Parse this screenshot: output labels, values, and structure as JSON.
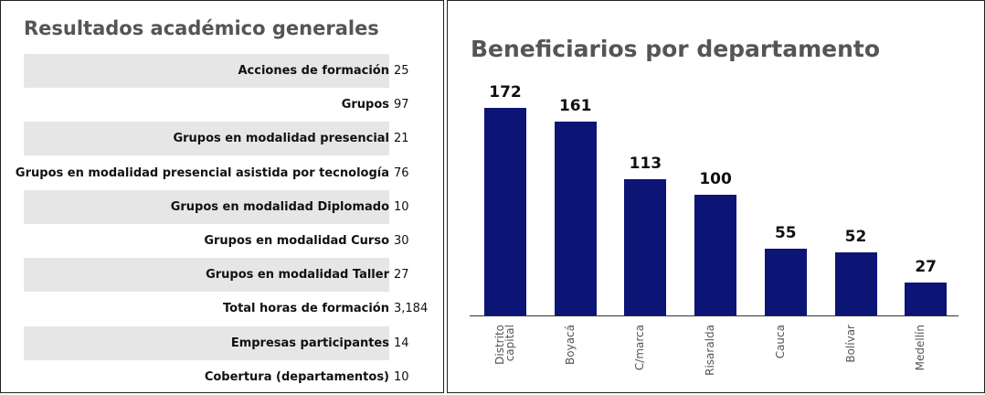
{
  "table": {
    "title": "Resultados académico generales",
    "rows": [
      [
        "Acciones de formación",
        "25"
      ],
      [
        "Grupos",
        "97"
      ],
      [
        "Grupos en modalidad presencial",
        "21"
      ],
      [
        "Grupos en modalidad presencial asistida por tecnología",
        "76"
      ],
      [
        "Grupos en modalidad Diplomado",
        "10"
      ],
      [
        "Grupos en modalidad Curso",
        "30"
      ],
      [
        "Grupos en modalidad Taller",
        "27"
      ],
      [
        "Total horas de formación",
        "3,184"
      ],
      [
        "Empresas participantes",
        "14"
      ],
      [
        "Cobertura (departamentos)",
        "10"
      ]
    ]
  },
  "chart_data": {
    "type": "bar",
    "title": "Beneficiarios por departamento",
    "categories": [
      "Distrito capital",
      "Boyacá",
      "C/marca",
      "Risaralda",
      "Cauca",
      "Bolívar",
      "Medellín"
    ],
    "values": [
      172,
      161,
      113,
      100,
      55,
      52,
      27
    ],
    "color": "#0c1475"
  }
}
